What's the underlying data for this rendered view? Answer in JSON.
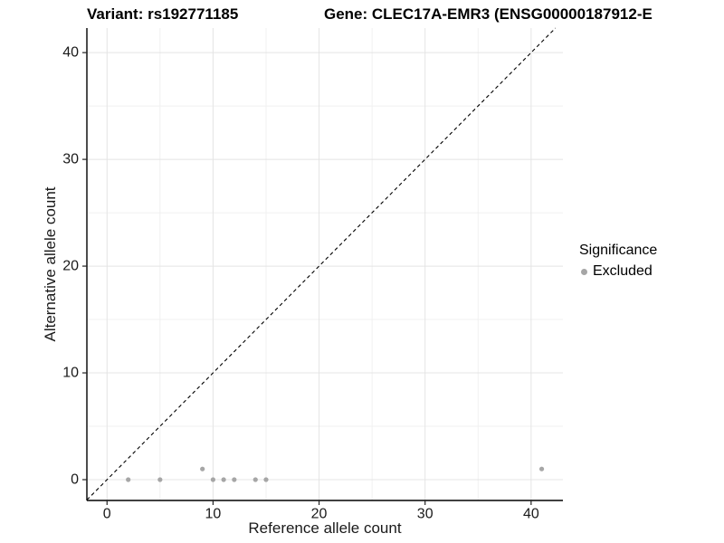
{
  "title": {
    "variant": "Variant: rs192771185",
    "gene": "Gene: CLEC17A-EMR3 (ENSG00000187912-E"
  },
  "legend": {
    "title": "Significance",
    "items": [
      {
        "label": "Excluded",
        "color": "#a6a6a6"
      }
    ]
  },
  "colors": {
    "point": "#a6a6a6",
    "grid_major": "#e4e4e4",
    "grid_minor": "#f0f0f0",
    "axis_line": "#000000",
    "tick_mark": "#222222",
    "text": "#1a1a1a",
    "reference_line": "#000000",
    "background": "#ffffff"
  },
  "chart_data": {
    "type": "scatter",
    "title": "Variant: rs192771185 | Gene: CLEC17A-EMR3 (ENSG00000187912-E",
    "xlabel": "Reference allele count",
    "ylabel": "Alternative allele count",
    "x_ticks": [
      0,
      10,
      20,
      30,
      40
    ],
    "y_ticks": [
      0,
      10,
      20,
      30,
      40
    ],
    "x_minor_ticks": [
      5,
      15,
      25,
      35
    ],
    "y_minor_ticks": [
      5,
      15,
      25,
      35
    ],
    "xlim": [
      -1.9,
      43.0
    ],
    "ylim": [
      -1.95,
      42.3
    ],
    "grid": "major and minor gridlines, light gray on white",
    "legend_position": "right",
    "reference_line": {
      "type": "identity",
      "equation": "y = x",
      "style": "dashed"
    },
    "series": [
      {
        "name": "Excluded",
        "color": "#a6a6a6",
        "points": [
          [
            2,
            0
          ],
          [
            5,
            0
          ],
          [
            9,
            1
          ],
          [
            10,
            0
          ],
          [
            11,
            0
          ],
          [
            12,
            0
          ],
          [
            14,
            0
          ],
          [
            15,
            0
          ],
          [
            41,
            1
          ]
        ]
      }
    ]
  }
}
